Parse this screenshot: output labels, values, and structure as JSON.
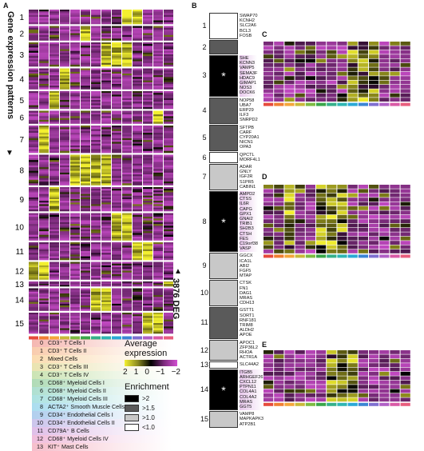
{
  "panels": {
    "a": "A",
    "b": "B",
    "c": "C",
    "d": "D",
    "e": "E"
  },
  "left": {
    "title": "Gene expression patterns",
    "deg": "3876 DEG",
    "clusters": [
      "1",
      "2",
      "3",
      "4",
      "5",
      "6",
      "7",
      "8",
      "9",
      "10",
      "11",
      "12",
      "13",
      "14",
      "15"
    ]
  },
  "cell_types": [
    {
      "num": "0",
      "label": "CD3⁺ T Cells I",
      "color": "#e64b3c"
    },
    {
      "num": "1",
      "label": "CD3⁺ T Cells II",
      "color": "#f07f33"
    },
    {
      "num": "2",
      "label": "Mixed Cells",
      "color": "#f4a63b"
    },
    {
      "num": "3",
      "label": "CD3⁺ T Cells III",
      "color": "#c9b93a"
    },
    {
      "num": "4",
      "label": "CD3⁺ T Cells IV",
      "color": "#7dbb42"
    },
    {
      "num": "5",
      "label": "CD68⁺ Myeloid Cells I",
      "color": "#3aa64a"
    },
    {
      "num": "6",
      "label": "CD68⁺ Myeloid Cells II",
      "color": "#35b08a"
    },
    {
      "num": "7",
      "label": "CD68⁺ Myeloid Cells III",
      "color": "#2fb6b3"
    },
    {
      "num": "8",
      "label": "ACTA2⁺ Smooth Muscle Cells",
      "color": "#2aa9d6"
    },
    {
      "num": "9",
      "label": "CD34⁺ Endothelial Cells I",
      "color": "#3c86d4"
    },
    {
      "num": "10",
      "label": "CD34⁺ Endothelial Cells II",
      "color": "#7f6fd0"
    },
    {
      "num": "11",
      "label": "CD79A⁺ B Cells",
      "color": "#b05fc6"
    },
    {
      "num": "12",
      "label": "CD68⁺ Myeloid Cells IV",
      "color": "#d95aa6"
    },
    {
      "num": "13",
      "label": "KIT⁺ Mast Cells",
      "color": "#e85e7e"
    }
  ],
  "avg_expr": {
    "title1": "Average",
    "title2": "expression",
    "ticks": [
      "2",
      "1",
      "0",
      "−1",
      "−2"
    ]
  },
  "enrichment": {
    "title": "Enrichment",
    "levels": [
      {
        "label": ">2",
        "color": "#000000"
      },
      {
        "label": ">1.5",
        "color": "#5a5a5a"
      },
      {
        "label": ">1.0",
        "color": "#c8c8c8"
      },
      {
        "label": "<1.0",
        "color": "#ffffff"
      }
    ]
  },
  "b_clusters": [
    {
      "id": "1",
      "level": 3,
      "genes": [
        "SWAP70",
        "KCNH2",
        "SLC2A6",
        "BCL3",
        "FOSB"
      ]
    },
    {
      "id": "2",
      "level": 1,
      "genes": []
    },
    {
      "id": "3",
      "level": 0,
      "star": "*",
      "genes": [
        "SHE",
        "KCNN3",
        "VAMP5",
        "SEMA3F",
        "HDAC9",
        "GIMAP1",
        "NOS3",
        "DOCK6"
      ]
    },
    {
      "id": "4",
      "level": 1,
      "genes": [
        "NOP58",
        "UBA7",
        "ERP29",
        "ILF3",
        "SNRPD2"
      ]
    },
    {
      "id": "5",
      "level": 1,
      "genes": [
        "SFTPB",
        "CARF",
        "CYP20A1",
        "NICN1",
        "OPA3"
      ]
    },
    {
      "id": "6",
      "level": 3,
      "genes": [
        "QPCTL",
        "MORF4L1"
      ]
    },
    {
      "id": "7",
      "level": 2,
      "genes": [
        "ADAR",
        "GNLY",
        "IGF2R",
        "S1PR5",
        "CABIN1"
      ]
    },
    {
      "id": "8",
      "level": 0,
      "star": "*",
      "genes": [
        "AMPD2",
        "CTSS",
        "IL6R",
        "CAPG",
        "GPX1",
        "GNAI2",
        "TRIB1",
        "SH2B3",
        "CTSH",
        "FES",
        "C19orf38",
        "VASP"
      ]
    },
    {
      "id": "9",
      "level": 2,
      "genes": [
        "GGCX",
        "ICA1L",
        "ABI2",
        "FGF5",
        "MTAP"
      ]
    },
    {
      "id": "10",
      "level": 2,
      "genes": [
        "CTSK",
        "FN1",
        "DAG1",
        "MRAS",
        "CDH13"
      ]
    },
    {
      "id": "11",
      "level": 1,
      "genes": [
        "GSTT1",
        "SORT1",
        "RNF181",
        "TRIM8",
        "ALDH2",
        "APOE"
      ]
    },
    {
      "id": "12",
      "level": 2,
      "genes": [
        "APOC1",
        "ZFP36L2",
        "RHOA",
        "ACTR1A"
      ]
    },
    {
      "id": "13",
      "level": 3,
      "genes": [
        "SLC44A2"
      ]
    },
    {
      "id": "14",
      "level": 0,
      "star": "*",
      "genes": [
        "ITGB5",
        "ARHGEF26",
        "CXCL12",
        "PTPN11",
        "COL4A1",
        "COL4A2",
        "MRAS",
        "GGT5"
      ]
    },
    {
      "id": "15",
      "level": 2,
      "genes": [
        "VAMP8",
        "MAPKAPK3",
        "ATP2B1"
      ]
    }
  ]
}
